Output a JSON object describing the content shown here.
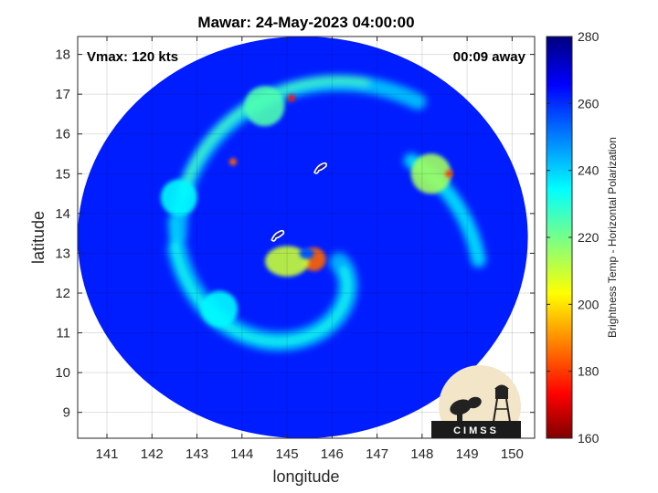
{
  "chart_data": {
    "type": "heatmap",
    "title": "Mawar: 24-May-2023 04:00:00",
    "xlabel": "longitude",
    "ylabel": "latitude",
    "xlim": [
      140.35,
      150.5
    ],
    "ylim": [
      8.35,
      18.45
    ],
    "xticks": [
      141,
      142,
      143,
      144,
      145,
      146,
      147,
      148,
      149,
      150
    ],
    "yticks": [
      9,
      10,
      11,
      12,
      13,
      14,
      15,
      16,
      17,
      18
    ],
    "grid": true,
    "annotations": {
      "vmax": "Vmax: 120 kts",
      "time_away": "00:09 away"
    },
    "colorbar": {
      "label": "Brightness Temp - Horizontal Polarization",
      "range": [
        160,
        280
      ],
      "ticks": [
        160,
        180,
        200,
        220,
        240,
        260,
        280
      ],
      "colormap": "jet",
      "colors": [
        "#7f0000",
        "#ff0000",
        "#ffff00",
        "#00ffff",
        "#0000ff",
        "#00007f"
      ]
    },
    "storm_center": {
      "lon": 145.6,
      "lat": 12.9
    },
    "swath": {
      "center_lon": 145.35,
      "center_lat": 13.4,
      "lon_radius": 5.0,
      "lat_radius": 5.05
    },
    "features": [
      {
        "kind": "eyewall",
        "lon": 145.6,
        "lat": 12.85,
        "tb": 185
      },
      {
        "kind": "inner_band",
        "lon": 145.0,
        "lat": 12.8,
        "tb": 210
      },
      {
        "kind": "spiral_band",
        "lon": 143.5,
        "lat": 11.6,
        "tb": 235
      },
      {
        "kind": "spiral_band",
        "lon": 142.6,
        "lat": 14.4,
        "tb": 235
      },
      {
        "kind": "outer_band",
        "lon": 144.5,
        "lat": 16.7,
        "tb": 225
      },
      {
        "kind": "outer_band",
        "lon": 148.2,
        "lat": 15.0,
        "tb": 215
      },
      {
        "kind": "hot_spot",
        "lon": 145.1,
        "lat": 16.9,
        "tb": 175
      },
      {
        "kind": "hot_spot",
        "lon": 148.6,
        "lat": 15.0,
        "tb": 180
      },
      {
        "kind": "hot_spot",
        "lon": 143.8,
        "lat": 15.3,
        "tb": 185
      }
    ],
    "islands": [
      {
        "name": "Guam",
        "lon": 144.8,
        "lat": 13.45
      },
      {
        "name": "Saipan",
        "lon": 145.75,
        "lat": 15.15
      }
    ]
  },
  "logo": {
    "text": "CIMSS"
  }
}
